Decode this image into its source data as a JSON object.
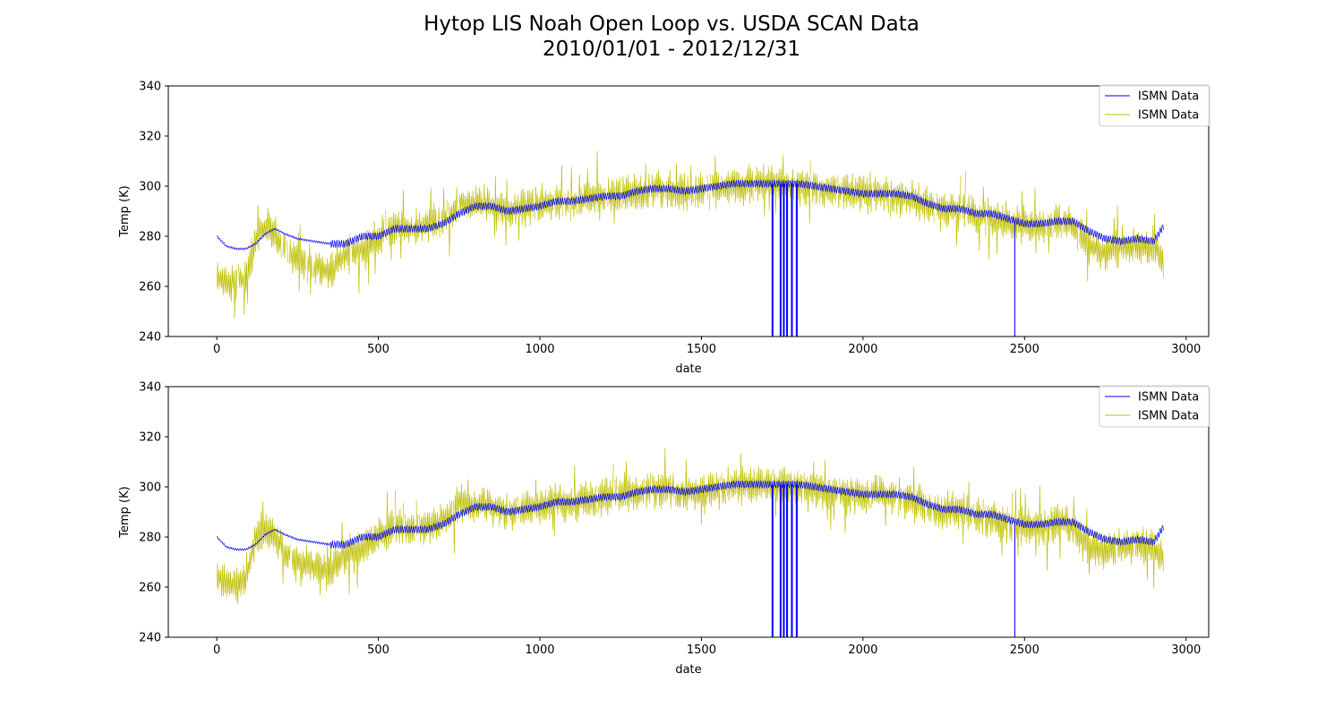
{
  "figure": {
    "title_line1": "Hytop LIS Noah Open Loop vs. USDA SCAN Data",
    "title_line2": "2010/01/01 - 2012/12/31"
  },
  "chart_data": [
    {
      "type": "line",
      "xlabel": "date",
      "ylabel": "Temp (K)",
      "xlim": [
        -150,
        3070
      ],
      "ylim": [
        240,
        340
      ],
      "xticks": [
        0,
        500,
        1000,
        1500,
        2000,
        2500,
        3000
      ],
      "yticks": [
        240,
        260,
        280,
        300,
        320,
        340
      ],
      "grid": false,
      "legend": "top-right",
      "series": [
        {
          "name": "ISMN Data",
          "color": "#0000ff",
          "envelope_x": [
            0,
            30,
            60,
            90,
            120,
            150,
            180,
            210,
            250,
            300,
            350,
            400,
            450,
            500,
            550,
            600,
            650,
            700,
            750,
            800,
            850,
            900,
            950,
            1000,
            1050,
            1100,
            1150,
            1200,
            1250,
            1300,
            1350,
            1400,
            1450,
            1500,
            1550,
            1600,
            1650,
            1700,
            1750,
            1800,
            1850,
            1900,
            1950,
            2000,
            2050,
            2100,
            2150,
            2200,
            2250,
            2300,
            2350,
            2400,
            2450,
            2500,
            2550,
            2600,
            2650,
            2700,
            2750,
            2800,
            2850,
            2900,
            2930
          ],
          "envelope_y": [
            280,
            276,
            275,
            275,
            277,
            281,
            283,
            281,
            279,
            278,
            277,
            277,
            280,
            280,
            283,
            283,
            283,
            285,
            289,
            292,
            292,
            290,
            291,
            292,
            294,
            294,
            295,
            296,
            296,
            298,
            299,
            299,
            298,
            299,
            300,
            301,
            301,
            301,
            301,
            301,
            300,
            299,
            298,
            297,
            297,
            297,
            296,
            293,
            291,
            291,
            289,
            289,
            287,
            285,
            285,
            286,
            286,
            282,
            279,
            278,
            279,
            278,
            284
          ],
          "drops_to_240_at": [
            1720,
            1745,
            1755,
            1765,
            1780,
            1795,
            2470
          ]
        },
        {
          "name": "ISMN Data",
          "color": "#bfbf00",
          "envelope_x": [
            0,
            30,
            60,
            90,
            120,
            150,
            180,
            210,
            250,
            300,
            350,
            400,
            450,
            500,
            550,
            600,
            650,
            700,
            750,
            800,
            850,
            900,
            950,
            1000,
            1050,
            1100,
            1150,
            1200,
            1250,
            1300,
            1350,
            1400,
            1450,
            1500,
            1550,
            1600,
            1650,
            1700,
            1750,
            1800,
            1850,
            1900,
            1950,
            2000,
            2050,
            2100,
            2150,
            2200,
            2250,
            2300,
            2350,
            2400,
            2450,
            2500,
            2550,
            2600,
            2650,
            2700,
            2750,
            2800,
            2850,
            2900,
            2930
          ],
          "envelope_y": [
            264,
            262,
            261,
            263,
            279,
            284,
            280,
            274,
            270,
            268,
            266,
            273,
            275,
            280,
            284,
            283,
            284,
            286,
            293,
            293,
            292,
            290,
            291,
            293,
            294,
            293,
            295,
            296,
            297,
            297,
            299,
            299,
            297,
            298,
            299,
            300,
            300,
            301,
            300,
            300,
            299,
            298,
            297,
            297,
            297,
            296,
            295,
            292,
            290,
            291,
            288,
            287,
            285,
            284,
            284,
            286,
            284,
            276,
            274,
            276,
            276,
            275,
            272
          ]
        }
      ]
    },
    {
      "type": "line",
      "xlabel": "date",
      "ylabel": "Temp (K)",
      "xlim": [
        -150,
        3070
      ],
      "ylim": [
        240,
        340
      ],
      "xticks": [
        0,
        500,
        1000,
        1500,
        2000,
        2500,
        3000
      ],
      "yticks": [
        240,
        260,
        280,
        300,
        320,
        340
      ],
      "grid": false,
      "legend": "top-right",
      "series": [
        {
          "name": "ISMN Data",
          "color": "#0000ff",
          "envelope_x": [
            0,
            30,
            60,
            90,
            120,
            150,
            180,
            210,
            250,
            300,
            350,
            400,
            450,
            500,
            550,
            600,
            650,
            700,
            750,
            800,
            850,
            900,
            950,
            1000,
            1050,
            1100,
            1150,
            1200,
            1250,
            1300,
            1350,
            1400,
            1450,
            1500,
            1550,
            1600,
            1650,
            1700,
            1750,
            1800,
            1850,
            1900,
            1950,
            2000,
            2050,
            2100,
            2150,
            2200,
            2250,
            2300,
            2350,
            2400,
            2450,
            2500,
            2550,
            2600,
            2650,
            2700,
            2750,
            2800,
            2850,
            2900,
            2930
          ],
          "envelope_y": [
            280,
            276,
            275,
            275,
            277,
            281,
            283,
            281,
            279,
            278,
            277,
            277,
            280,
            280,
            283,
            283,
            283,
            285,
            289,
            292,
            292,
            290,
            291,
            292,
            294,
            294,
            295,
            296,
            296,
            298,
            299,
            299,
            298,
            299,
            300,
            301,
            301,
            301,
            301,
            301,
            300,
            299,
            298,
            297,
            297,
            297,
            296,
            293,
            291,
            291,
            289,
            289,
            287,
            285,
            285,
            286,
            286,
            282,
            279,
            278,
            279,
            278,
            284
          ],
          "drops_to_240_at": [
            1720,
            1745,
            1755,
            1765,
            1780,
            1795,
            2470
          ]
        },
        {
          "name": "ISMN Data",
          "color": "#bfbf00",
          "envelope_x": [
            0,
            30,
            60,
            90,
            120,
            150,
            180,
            210,
            250,
            300,
            350,
            400,
            450,
            500,
            550,
            600,
            650,
            700,
            750,
            800,
            850,
            900,
            950,
            1000,
            1050,
            1100,
            1150,
            1200,
            1250,
            1300,
            1350,
            1400,
            1450,
            1500,
            1550,
            1600,
            1650,
            1700,
            1750,
            1800,
            1850,
            1900,
            1950,
            2000,
            2050,
            2100,
            2150,
            2200,
            2250,
            2300,
            2350,
            2400,
            2450,
            2500,
            2550,
            2600,
            2650,
            2700,
            2750,
            2800,
            2850,
            2900,
            2930
          ],
          "envelope_y": [
            264,
            262,
            261,
            263,
            279,
            284,
            280,
            274,
            270,
            268,
            266,
            273,
            275,
            280,
            284,
            283,
            284,
            286,
            293,
            293,
            292,
            290,
            291,
            293,
            294,
            293,
            295,
            296,
            297,
            297,
            299,
            299,
            297,
            298,
            299,
            300,
            300,
            301,
            300,
            300,
            299,
            298,
            297,
            297,
            297,
            296,
            295,
            292,
            290,
            291,
            288,
            287,
            285,
            284,
            284,
            286,
            284,
            276,
            274,
            276,
            276,
            275,
            272
          ]
        }
      ]
    }
  ]
}
